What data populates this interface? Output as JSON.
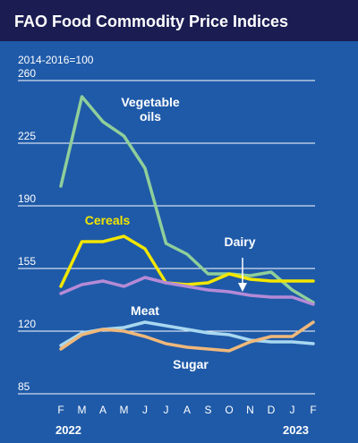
{
  "title": "FAO Food Commodity Price Indices",
  "colors": {
    "background": "#1f5aa8",
    "title_bar": "#1a1c52",
    "grid": "#ffffff",
    "text": "#ffffff"
  },
  "chart_data": {
    "type": "line",
    "title": "FAO Food Commodity Price Indices",
    "subtitle": "2014-2016=100",
    "xlabel": "",
    "ylabel": "",
    "x": [
      "F",
      "M",
      "A",
      "M",
      "J",
      "J",
      "A",
      "S",
      "O",
      "N",
      "D",
      "J",
      "F"
    ],
    "year_labels": [
      "2022",
      "2023"
    ],
    "ylim": [
      85,
      260
    ],
    "yticks": [
      85,
      120,
      155,
      190,
      225,
      260
    ],
    "grid": true,
    "legend": "inline labels",
    "series": [
      {
        "name": "Vegetable oils",
        "color": "#8fcf9a",
        "label_lines": [
          "Vegetable",
          "oils"
        ],
        "label_color": "#ffffff",
        "values": [
          201,
          251,
          237,
          229,
          211,
          169,
          163,
          152,
          152,
          151,
          153,
          143,
          136
        ]
      },
      {
        "name": "Cereals",
        "color": "#f2e600",
        "label_lines": [
          "Cereals"
        ],
        "label_color": "#f2e600",
        "values": [
          145,
          170,
          170,
          173,
          166,
          147,
          146,
          147,
          152,
          149,
          148,
          148,
          148
        ]
      },
      {
        "name": "Dairy",
        "color": "#b58ad6",
        "label_lines": [
          "Dairy"
        ],
        "label_color": "#ffffff",
        "values": [
          141,
          146,
          148,
          145,
          150,
          147,
          145,
          143,
          142,
          140,
          139,
          139,
          135
        ]
      },
      {
        "name": "Meat",
        "color": "#a8d8f0",
        "label_lines": [
          "Meat"
        ],
        "label_color": "#ffffff",
        "values": [
          112,
          119,
          121,
          122,
          125,
          123,
          121,
          119,
          118,
          115,
          114,
          114,
          113
        ]
      },
      {
        "name": "Sugar",
        "color": "#f0b87a",
        "label_lines": [
          "Sugar"
        ],
        "label_color": "#ffffff",
        "values": [
          110,
          118,
          121,
          120,
          117,
          113,
          111,
          110,
          109,
          114,
          117,
          117,
          125
        ]
      }
    ]
  }
}
